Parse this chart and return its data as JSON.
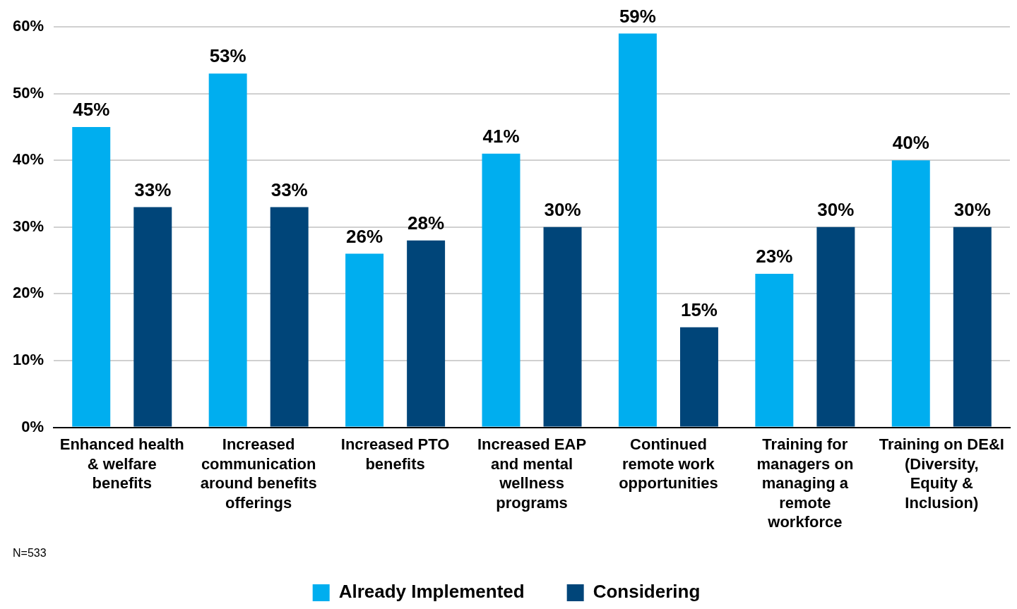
{
  "chart_data": {
    "type": "bar",
    "categories": [
      "Enhanced health & welfare benefits",
      "Increased communication around benefits offerings",
      "Increased PTO benefits",
      "Increased EAP and mental wellness programs",
      "Continued remote work opportunities",
      "Training for managers on managing a remote workforce",
      "Training on DE&I (Diversity, Equity & Inclusion)"
    ],
    "series": [
      {
        "name": "Already Implemented",
        "color": "#00aeef",
        "values": [
          45,
          53,
          26,
          41,
          59,
          23,
          40
        ],
        "value_labels": [
          "45%",
          "53%",
          "26%",
          "41%",
          "59%",
          "23%",
          "40%"
        ]
      },
      {
        "name": "Considering",
        "color": "#004579",
        "values": [
          33,
          33,
          28,
          30,
          15,
          30,
          30
        ],
        "value_labels": [
          "33%",
          "33%",
          "28%",
          "30%",
          "15%",
          "30%",
          "30%"
        ]
      }
    ],
    "ylim": [
      0,
      60
    ],
    "yticks": [
      {
        "value": 0,
        "label": "0%"
      },
      {
        "value": 10,
        "label": "10%"
      },
      {
        "value": 20,
        "label": "20%"
      },
      {
        "value": 30,
        "label": "30%"
      },
      {
        "value": 40,
        "label": "40%"
      },
      {
        "value": 50,
        "label": "50%"
      },
      {
        "value": 60,
        "label": "60%"
      }
    ],
    "grid": "y",
    "legend": "bottom",
    "annotations": [
      "N=533"
    ]
  }
}
